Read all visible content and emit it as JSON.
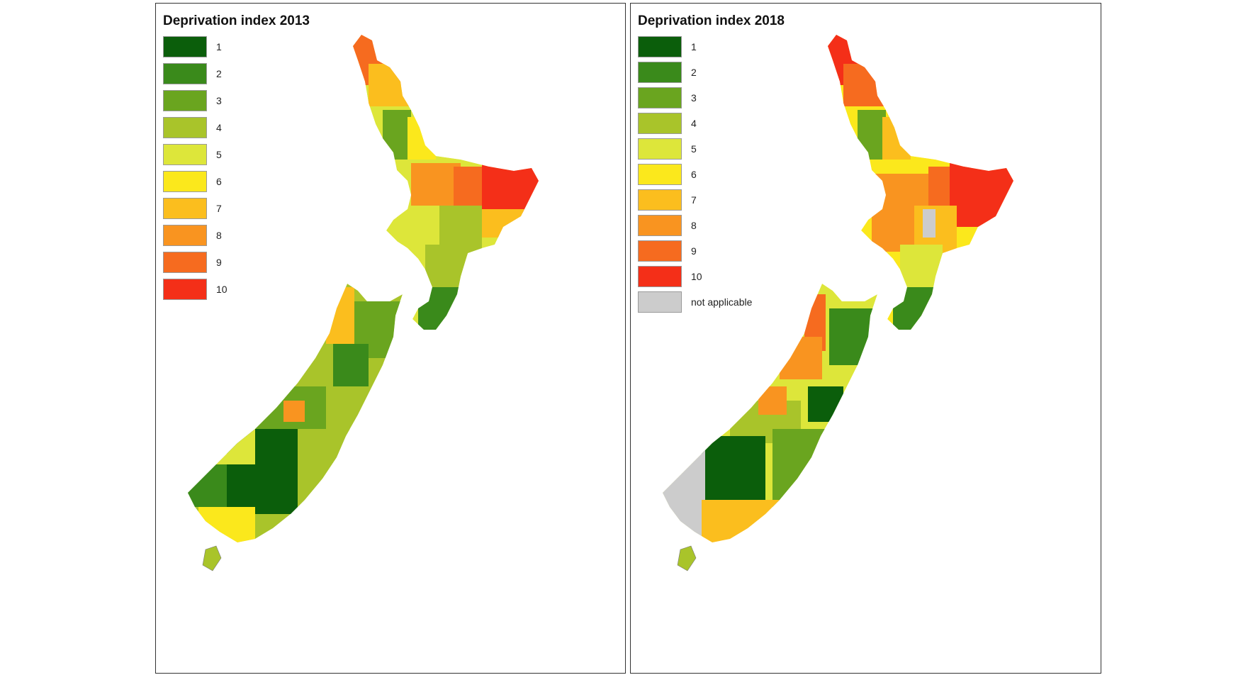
{
  "maps": [
    {
      "title": "Deprivation index 2013",
      "legend": [
        {
          "label": "1",
          "color": "#0b5e0b"
        },
        {
          "label": "2",
          "color": "#3a8a1b"
        },
        {
          "label": "3",
          "color": "#6aa51f"
        },
        {
          "label": "4",
          "color": "#a9c42a"
        },
        {
          "label": "5",
          "color": "#dde63a"
        },
        {
          "label": "6",
          "color": "#fbe81c"
        },
        {
          "label": "7",
          "color": "#fbbe1e"
        },
        {
          "label": "8",
          "color": "#f99420"
        },
        {
          "label": "9",
          "color": "#f66b1f"
        },
        {
          "label": "10",
          "color": "#f42f18"
        }
      ]
    },
    {
      "title": "Deprivation index 2018",
      "legend": [
        {
          "label": "1",
          "color": "#0b5e0b"
        },
        {
          "label": "2",
          "color": "#3a8a1b"
        },
        {
          "label": "3",
          "color": "#6aa51f"
        },
        {
          "label": "4",
          "color": "#a9c42a"
        },
        {
          "label": "5",
          "color": "#dde63a"
        },
        {
          "label": "6",
          "color": "#fbe81c"
        },
        {
          "label": "7",
          "color": "#fbbe1e"
        },
        {
          "label": "8",
          "color": "#f99420"
        },
        {
          "label": "9",
          "color": "#f66b1f"
        },
        {
          "label": "10",
          "color": "#f42f18"
        },
        {
          "label": "not applicable",
          "color": "#cccccc"
        }
      ]
    }
  ]
}
